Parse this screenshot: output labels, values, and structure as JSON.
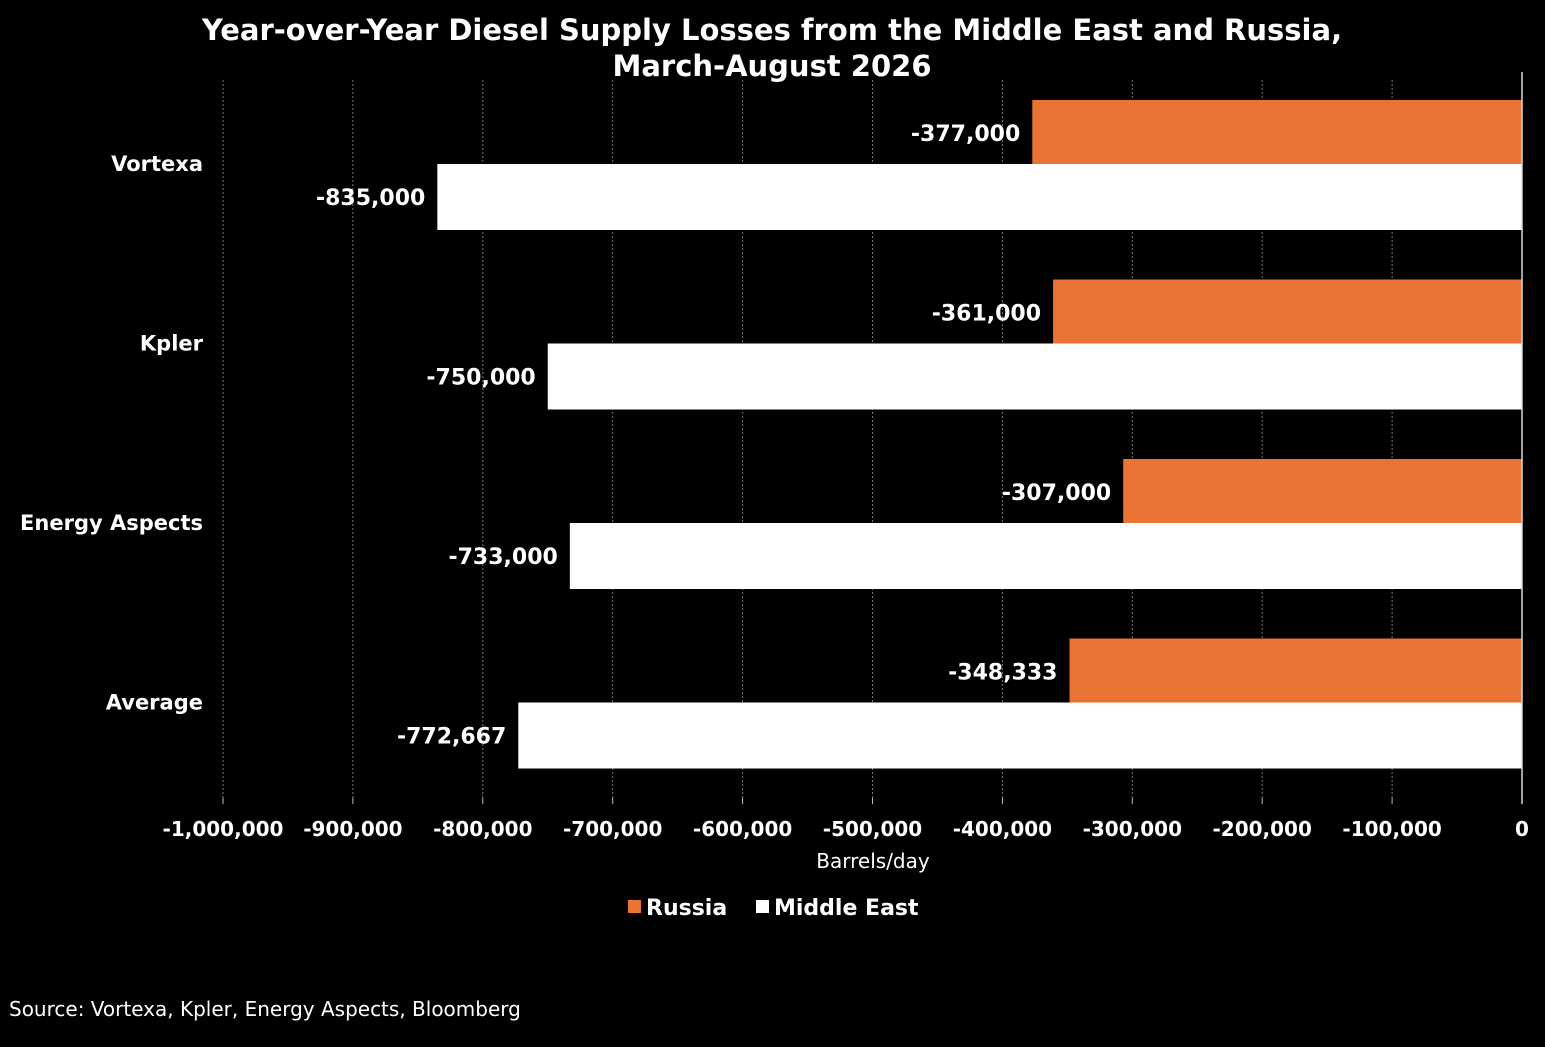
{
  "chart_data": {
    "type": "bar",
    "orientation": "horizontal",
    "title": [
      "Year-over-Year Diesel Supply Losses from the Middle East and Russia,",
      "March-August 2026"
    ],
    "categories": [
      "Vortexa",
      "Kpler",
      "Energy Aspects",
      "Average"
    ],
    "series": [
      {
        "name": "Russia",
        "color": "#E87333",
        "values": [
          -377000,
          -361000,
          -307000,
          -348333
        ]
      },
      {
        "name": "Middle East",
        "color": "#FFFFFF",
        "values": [
          -835000,
          -750000,
          -733000,
          -772667
        ]
      }
    ],
    "value_labels": {
      "Russia": [
        "-377,000",
        "-361,000",
        "-307,000",
        "-348,333"
      ],
      "Middle East": [
        "-835,000",
        "-750,000",
        "-733,000",
        "-772,667"
      ]
    },
    "xlabel": "Barrels/day",
    "ylabel": "",
    "xlim": [
      -1000000,
      0
    ],
    "x_ticks": [
      -1000000,
      -900000,
      -800000,
      -700000,
      -600000,
      -500000,
      -400000,
      -300000,
      -200000,
      -100000,
      0
    ],
    "x_tick_labels": [
      "-1,000,000",
      "-900,000",
      "-800,000",
      "-700,000",
      "-600,000",
      "-500,000",
      "-400,000",
      "-300,000",
      "-200,000",
      "-100,000",
      "0"
    ],
    "grid": true,
    "legend": "bottom",
    "background": "#000000",
    "gridline_color": "#777777"
  },
  "source": "Source: Vortexa, Kpler, Energy Aspects, Bloomberg"
}
